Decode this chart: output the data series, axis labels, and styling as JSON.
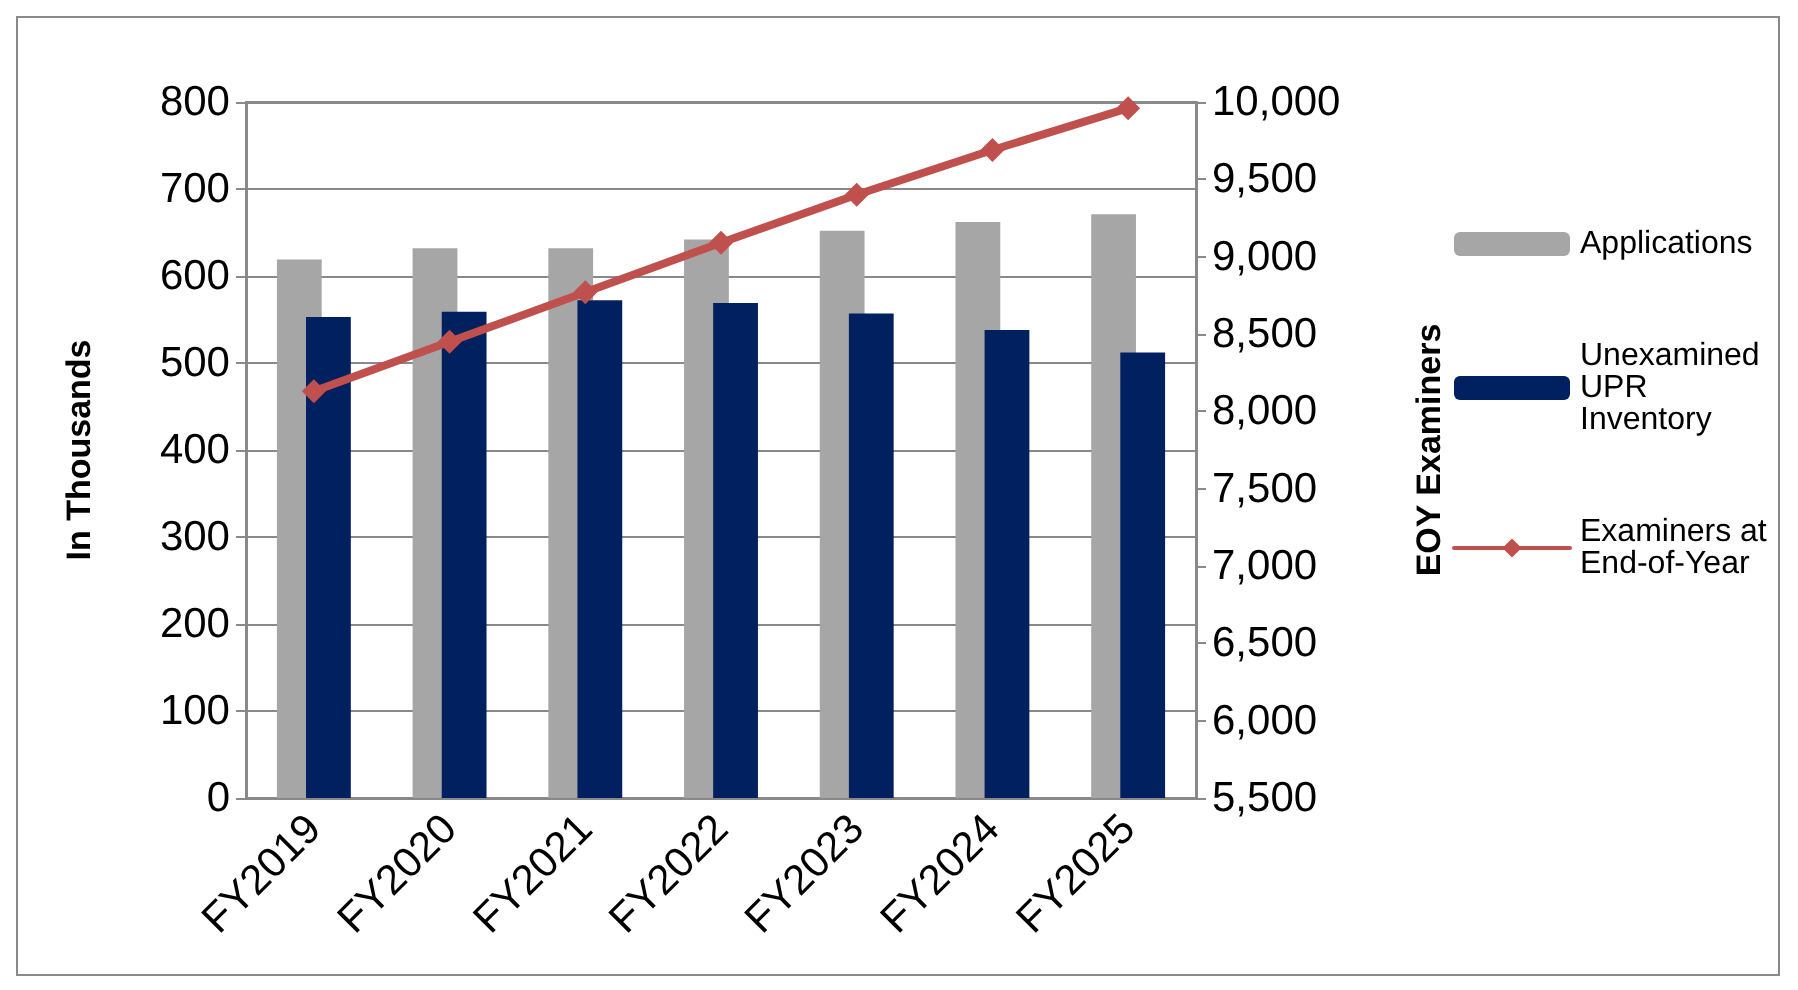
{
  "chart_data": {
    "type": "bar",
    "ylabel": "In Thousands",
    "y2label": "EOY Examiners",
    "categories": [
      "FY2019",
      "FY2020",
      "FY2021",
      "FY2022",
      "FY2023",
      "FY2024",
      "FY2025"
    ],
    "series": [
      {
        "name": "Applications",
        "color": "#a6a6a6",
        "values": [
          619,
          632,
          632,
          642,
          652,
          662,
          671
        ]
      },
      {
        "name": "Unexamined UPR Inventory",
        "color": "#002060",
        "values": [
          553,
          559,
          572,
          569,
          557,
          538,
          512
        ]
      },
      {
        "name": "Examiners at End-of-Year",
        "type": "line",
        "axis": "y2",
        "color": "#c0504d",
        "marker": "diamond",
        "values": [
          8130,
          8450,
          8770,
          9090,
          9400,
          9690,
          9960
        ]
      }
    ],
    "ylim": [
      0,
      800
    ],
    "yticks": [
      0,
      100,
      200,
      300,
      400,
      500,
      600,
      700,
      800
    ],
    "y2lim": [
      5500,
      10000
    ],
    "y2ticks": [
      {
        "value": 5500,
        "label": "5,500"
      },
      {
        "value": 6000,
        "label": "6,000"
      },
      {
        "value": 6500,
        "label": "6,500"
      },
      {
        "value": 7000,
        "label": "7,000"
      },
      {
        "value": 7500,
        "label": "7,500"
      },
      {
        "value": 8000,
        "label": "8,000"
      },
      {
        "value": 8500,
        "label": "8,500"
      },
      {
        "value": 9000,
        "label": "9,000"
      },
      {
        "value": 9500,
        "label": "9,500"
      },
      {
        "value": 10000,
        "label": "10,000"
      }
    ],
    "grid": "y",
    "legend": "right"
  }
}
